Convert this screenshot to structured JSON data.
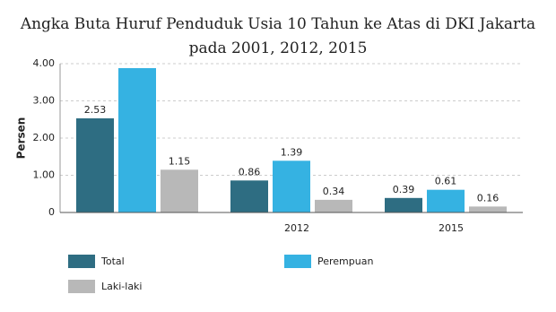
{
  "chart_data": {
    "type": "bar",
    "title": "Angka Buta Huruf Penduduk Usia 10 Tahun ke Atas di DKI Jakarta pada 2001, 2012, 2015",
    "y_label": "Persen",
    "categories": [
      null,
      "2012",
      "2015"
    ],
    "series": [
      {
        "name": "Total",
        "color": "#2e6d82",
        "values": [
          2.53,
          0.86,
          0.39
        ],
        "value_labels": [
          "2.53",
          "0.86",
          "0.39"
        ]
      },
      {
        "name": "Perempuan",
        "color": "#35b2e2",
        "values": [
          3.88,
          1.39,
          0.61
        ],
        "value_labels": [
          null,
          "1.39",
          "0.61"
        ]
      },
      {
        "name": "Laki-laki",
        "color": "#b8b8b8",
        "values": [
          1.15,
          0.34,
          0.16
        ],
        "value_labels": [
          "1.15",
          "0.34",
          "0.16"
        ]
      }
    ],
    "ylim": [
      0,
      4
    ],
    "yticks": [
      0,
      {
        "value": 1,
        "label": "1.00"
      },
      {
        "value": 2,
        "label": "2.00"
      },
      {
        "value": 3,
        "label": "3.00"
      },
      {
        "value": 4,
        "label": "4.00"
      }
    ],
    "grid": true
  }
}
